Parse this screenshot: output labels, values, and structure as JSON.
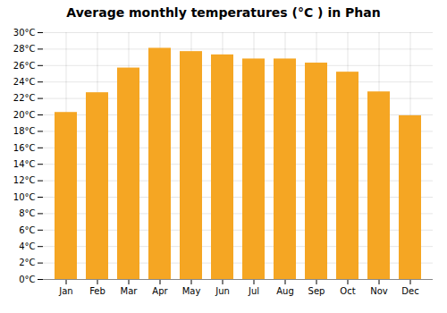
{
  "chart_data": {
    "type": "bar",
    "title": "Average monthly temperatures (°C ) in Phan",
    "categories": [
      "Jan",
      "Feb",
      "Mar",
      "Apr",
      "May",
      "Jun",
      "Jul",
      "Aug",
      "Sep",
      "Oct",
      "Nov",
      "Dec"
    ],
    "values": [
      20.3,
      22.7,
      25.7,
      28.1,
      27.7,
      27.3,
      26.8,
      26.8,
      26.3,
      25.2,
      22.8,
      19.9
    ],
    "color": "#F5A623",
    "ylim": [
      0,
      30
    ],
    "yticks": [
      {
        "value": 0,
        "label": "0°C"
      },
      {
        "value": 2,
        "label": "2°C"
      },
      {
        "value": 4,
        "label": "4°C"
      },
      {
        "value": 6,
        "label": "6°C"
      },
      {
        "value": 8,
        "label": "8°C"
      },
      {
        "value": 10,
        "label": "10°C"
      },
      {
        "value": 12,
        "label": "12°C"
      },
      {
        "value": 14,
        "label": "14°C"
      },
      {
        "value": 16,
        "label": "16°C"
      },
      {
        "value": 18,
        "label": "18°C"
      },
      {
        "value": 20,
        "label": "20°C"
      },
      {
        "value": 22,
        "label": "22°C"
      },
      {
        "value": 24,
        "label": "24°C"
      },
      {
        "value": 26,
        "label": "26°C"
      },
      {
        "value": 28,
        "label": "28°C"
      },
      {
        "value": 30,
        "label": "30°C"
      }
    ],
    "grid": true
  }
}
